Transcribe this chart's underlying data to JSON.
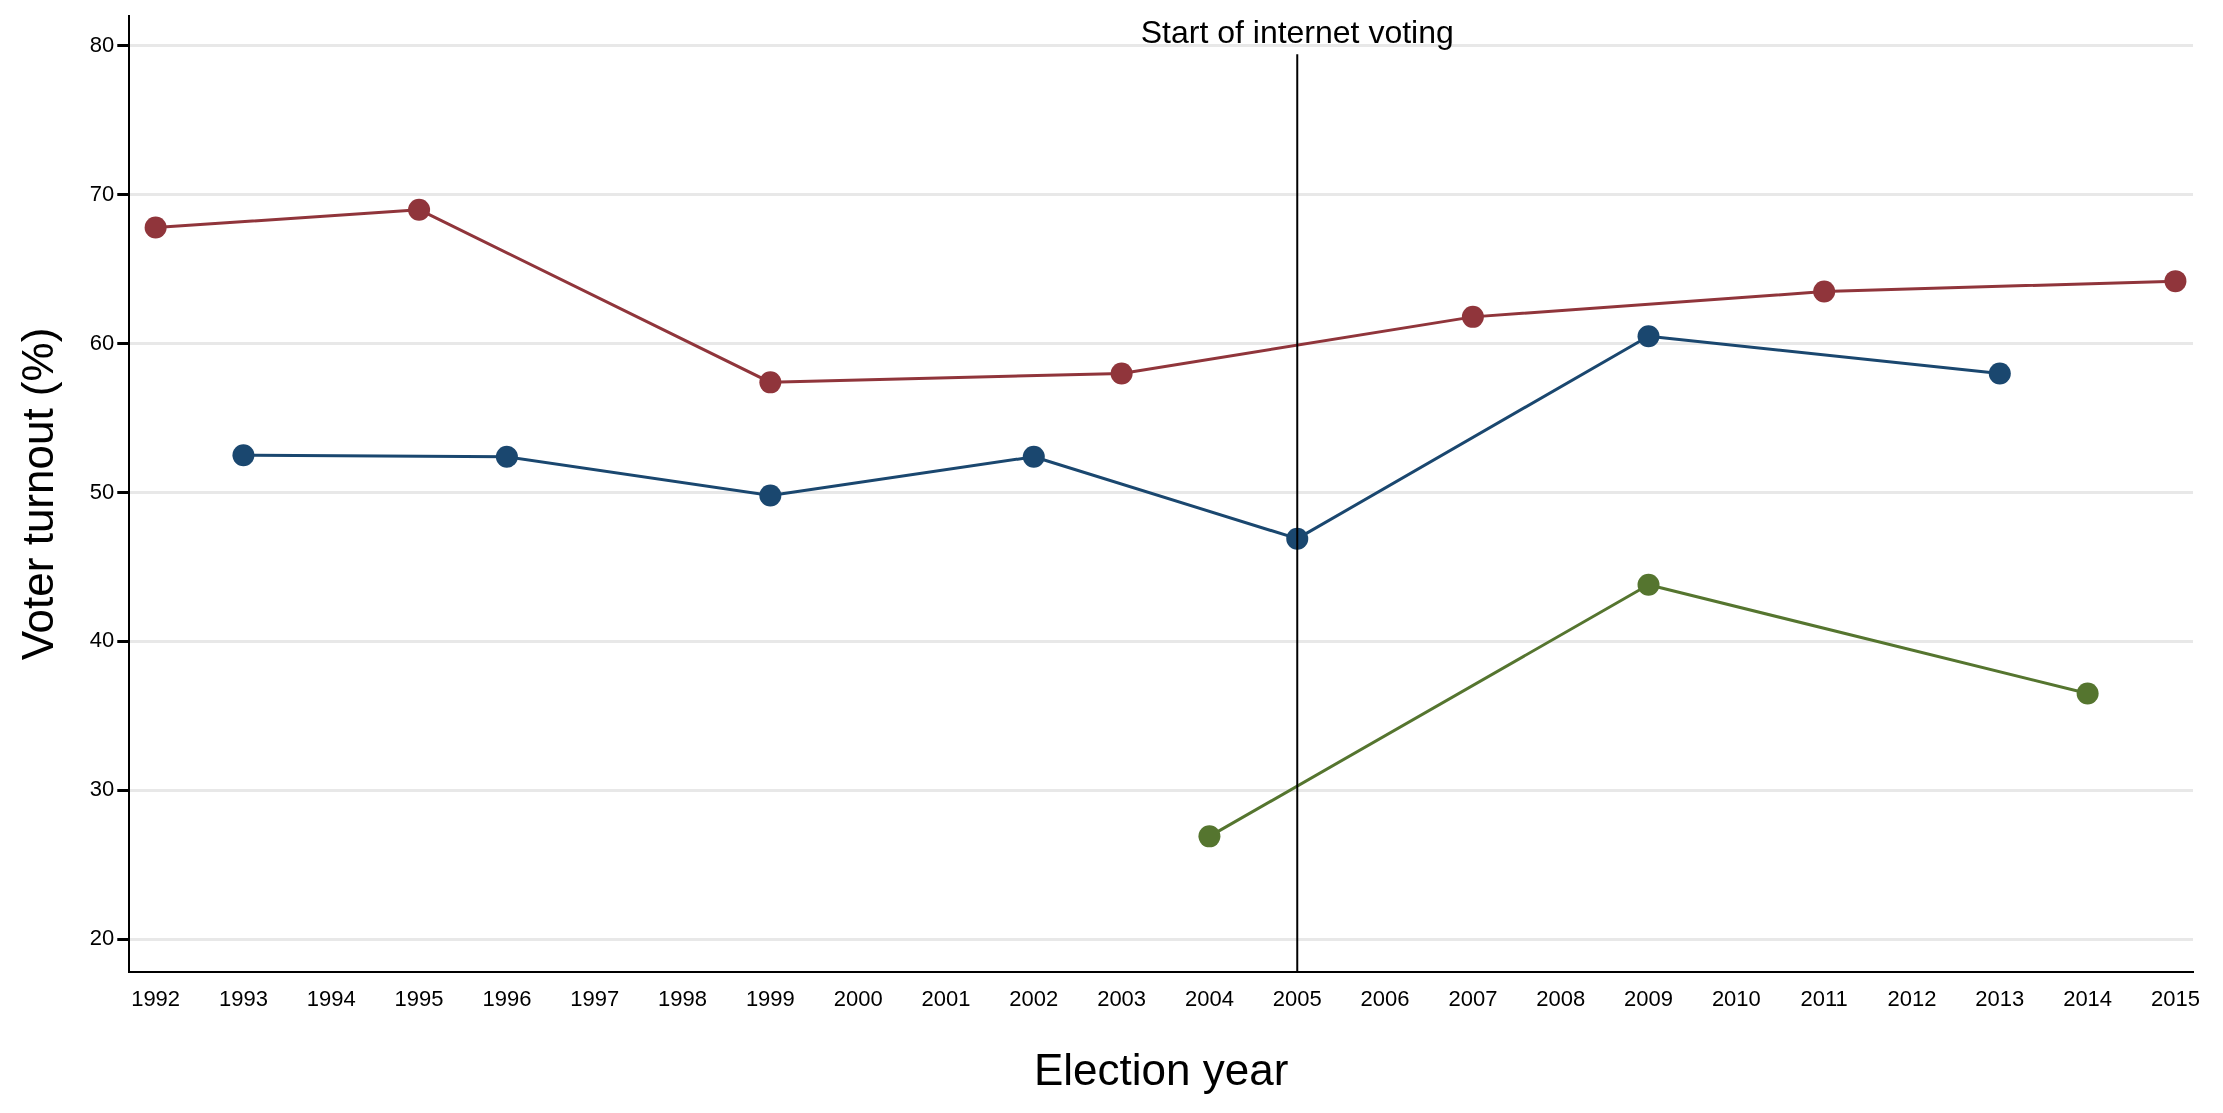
{
  "chart_data": {
    "type": "line",
    "xlabel": "Election year",
    "ylabel": "Voter turnout (%)",
    "xlim": [
      1991.7,
      2015.2
    ],
    "xticks": [
      1992,
      1993,
      1994,
      1995,
      1996,
      1997,
      1998,
      1999,
      2000,
      2001,
      2002,
      2003,
      2004,
      2005,
      2006,
      2007,
      2008,
      2009,
      2010,
      2011,
      2012,
      2013,
      2014,
      2015
    ],
    "ylim": [
      17.8,
      82
    ],
    "yticks": [
      20,
      30,
      40,
      50,
      60,
      70,
      80
    ],
    "grid": "y",
    "legend": false,
    "marker": "circle",
    "line_style": "solid",
    "ref_lines": [
      {
        "axis": "x",
        "value": 2005,
        "label": "Start of internet voting",
        "color": "#000000"
      }
    ],
    "series": [
      {
        "color": "#90353b",
        "x": [
          1992,
          1995,
          1999,
          2003,
          2007,
          2011,
          2015
        ],
        "values": [
          67.8,
          69.0,
          57.4,
          58.0,
          61.8,
          63.5,
          64.2
        ]
      },
      {
        "color": "#1a476f",
        "x": [
          1993,
          1996,
          1999,
          2002,
          2005,
          2009,
          2013
        ],
        "values": [
          52.5,
          52.4,
          49.8,
          52.4,
          46.9,
          60.5,
          58.0
        ]
      },
      {
        "color": "#55752f",
        "x": [
          2004,
          2009,
          2014
        ],
        "values": [
          26.9,
          43.8,
          36.5
        ]
      }
    ]
  }
}
